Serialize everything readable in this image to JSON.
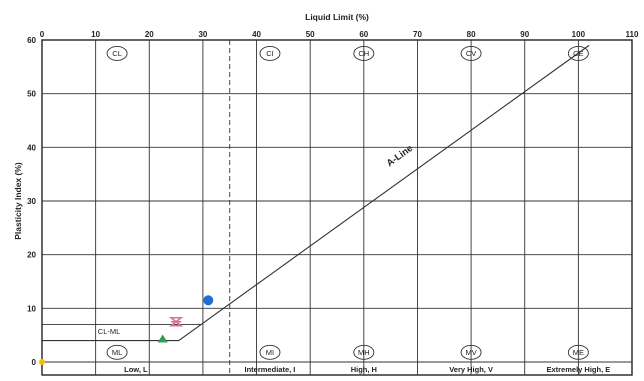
{
  "chart_data": {
    "type": "scatter",
    "title": "Liquid Limit (%)",
    "xlabel": "Liquid Limit (%)",
    "ylabel": "Plasticity Index (%)",
    "xlim": [
      0,
      110
    ],
    "ylim": [
      0,
      60
    ],
    "x_ticks": [
      "0",
      "10",
      "20",
      "30",
      "40",
      "50",
      "60",
      "70",
      "80",
      "90",
      "100",
      "110"
    ],
    "y_ticks": [
      "0",
      "10",
      "20",
      "30",
      "40",
      "50",
      "60"
    ],
    "grid": true,
    "dashed_boundary_x": 35,
    "band_boundaries_x": [
      35,
      50,
      70,
      90
    ],
    "a_line": {
      "label": "A-Line",
      "points": [
        [
          0,
          4
        ],
        [
          25.5,
          4
        ],
        [
          102,
          59
        ]
      ]
    },
    "cl_ml_band": {
      "label": "CL-ML",
      "lower_pi": 4,
      "upper_pi": 7
    },
    "zone_labels_upper": [
      {
        "label": "CL",
        "x": 14,
        "y": 57.5
      },
      {
        "label": "CI",
        "x": 42.5,
        "y": 57.5
      },
      {
        "label": "CH",
        "x": 60,
        "y": 57.5
      },
      {
        "label": "CV",
        "x": 80,
        "y": 57.5
      },
      {
        "label": "CE",
        "x": 100,
        "y": 57.5
      }
    ],
    "zone_labels_lower": [
      {
        "label": "ML",
        "x": 14,
        "y": 1.8
      },
      {
        "label": "MI",
        "x": 42.5,
        "y": 1.8
      },
      {
        "label": "MH",
        "x": 60,
        "y": 1.8
      },
      {
        "label": "MV",
        "x": 80,
        "y": 1.8
      },
      {
        "label": "ME",
        "x": 100,
        "y": 1.8
      }
    ],
    "plasticity_bands": [
      {
        "label": "Low, L",
        "from": 0,
        "to": 35
      },
      {
        "label": "Intermediate, I",
        "from": 35,
        "to": 50
      },
      {
        "label": "High, H",
        "from": 50,
        "to": 70
      },
      {
        "label": "Very High, V",
        "from": 70,
        "to": 90
      },
      {
        "label": "Extremely High, E",
        "from": 90,
        "to": 110
      }
    ],
    "points": [
      {
        "x": 31,
        "y": 11.5,
        "marker": "circle",
        "color": "#1f6fd1"
      },
      {
        "x": 25,
        "y": 7.5,
        "marker": "bowtie",
        "color": "#e0708a"
      },
      {
        "x": 22.5,
        "y": 4.2,
        "marker": "triangle",
        "color": "#2e9e4f"
      },
      {
        "x": 0,
        "y": 0,
        "marker": "circle",
        "color": "#f2c200"
      }
    ]
  }
}
